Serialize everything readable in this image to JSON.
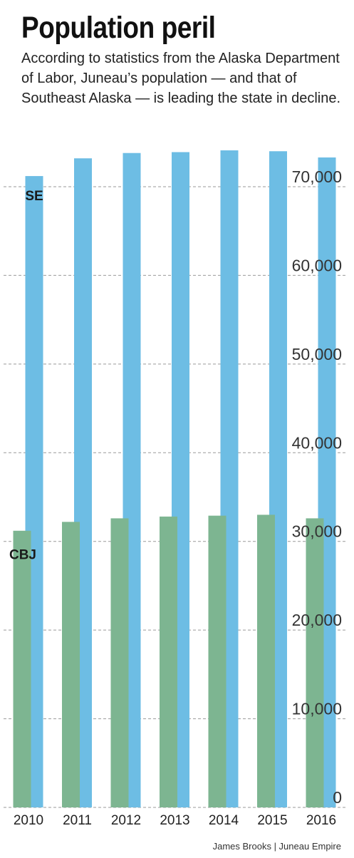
{
  "header": {
    "title": "Population peril",
    "subtitle": "According to statistics from the Alaska Department of Labor, Juneau’s population — and that of Southeast Alaska — is leading the state in decline."
  },
  "credit": "James Brooks | Juneau Empire",
  "colors": {
    "se": "#6dbde4",
    "cbj": "#7db591",
    "grid": "#9a9a9a"
  },
  "chart_data": {
    "type": "bar",
    "title": "Population peril",
    "categories": [
      "2010",
      "2011",
      "2012",
      "2013",
      "2014",
      "2015",
      "2016"
    ],
    "series": [
      {
        "name": "SE",
        "values": [
          71200,
          73200,
          73800,
          73900,
          74100,
          74000,
          73300
        ]
      },
      {
        "name": "CBJ",
        "values": [
          31200,
          32200,
          32600,
          32800,
          32900,
          33000,
          32600
        ]
      }
    ],
    "yticks": [
      {
        "value": 0,
        "label": "0"
      },
      {
        "value": 10000,
        "label": "10,000"
      },
      {
        "value": 20000,
        "label": "20,000"
      },
      {
        "value": 30000,
        "label": "30,000"
      },
      {
        "value": 40000,
        "label": "40,000"
      },
      {
        "value": 50000,
        "label": "50,000"
      },
      {
        "value": 60000,
        "label": "60,000"
      },
      {
        "value": 70000,
        "label": "70,000"
      }
    ],
    "ylim": [
      0,
      70000
    ],
    "grid": true,
    "series_labels_position": "left"
  }
}
